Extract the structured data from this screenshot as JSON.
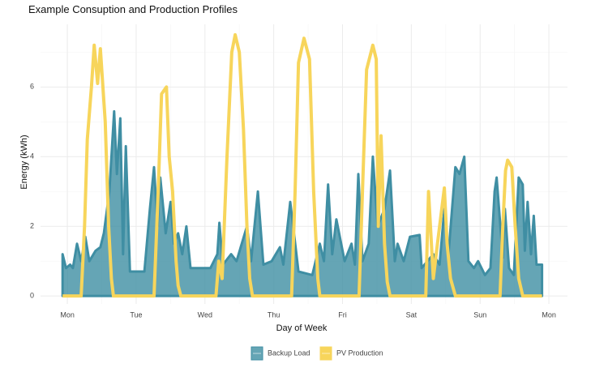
{
  "chart_data": {
    "type": "line",
    "title": "Example Consuption and Production Profiles",
    "x_label": "Day of Week",
    "y_label": "Energy (kWh)",
    "xlim": [
      -0.39,
      7.27
    ],
    "ylim": [
      -0.23,
      7.8
    ],
    "xticks": [
      {
        "value": 0,
        "label": "Mon"
      },
      {
        "value": 1,
        "label": "Tue"
      },
      {
        "value": 2,
        "label": "Wed"
      },
      {
        "value": 3,
        "label": "Thu"
      },
      {
        "value": 4,
        "label": "Fri"
      },
      {
        "value": 5,
        "label": "Sat"
      },
      {
        "value": 6,
        "label": "Sun"
      },
      {
        "value": 7,
        "label": "Mon"
      }
    ],
    "yticks": [
      0,
      2,
      4,
      6
    ],
    "grid": true,
    "legend": "bottom",
    "series": [
      {
        "name": "Backup Load",
        "color": "#3f8ea3",
        "fill": true,
        "x": [
          -0.07,
          -0.02,
          0.04,
          0.08,
          0.14,
          0.2,
          0.26,
          0.32,
          0.41,
          0.48,
          0.53,
          0.61,
          0.68,
          0.72,
          0.77,
          0.81,
          0.85,
          0.91,
          1.12,
          1.2,
          1.26,
          1.31,
          1.35,
          1.43,
          1.5,
          1.55,
          1.61,
          1.67,
          1.73,
          1.79,
          2.08,
          2.18,
          2.21,
          2.26,
          2.38,
          2.46,
          2.61,
          2.67,
          2.77,
          2.85,
          2.97,
          3.09,
          3.14,
          3.24,
          3.36,
          3.56,
          3.67,
          3.73,
          3.79,
          3.85,
          3.91,
          4.03,
          4.13,
          4.18,
          4.23,
          4.29,
          4.38,
          4.44,
          4.51,
          4.61,
          4.69,
          4.76,
          4.8,
          4.89,
          4.98,
          5.12,
          5.15,
          5.32,
          5.41,
          5.48,
          5.54,
          5.64,
          5.7,
          5.77,
          5.83,
          5.91,
          5.97,
          6.07,
          6.15,
          6.21,
          6.24,
          6.33,
          6.36,
          6.42,
          6.49,
          6.56,
          6.62,
          6.65,
          6.69,
          6.74,
          6.78,
          6.82,
          6.9
        ],
        "values": [
          1.2,
          0.8,
          0.9,
          0.8,
          1.5,
          1.0,
          1.7,
          1.0,
          1.3,
          1.4,
          1.8,
          3.0,
          5.3,
          3.5,
          5.1,
          1.2,
          4.3,
          0.7,
          0.7,
          2.5,
          3.7,
          2.0,
          3.4,
          1.8,
          2.7,
          1.5,
          1.8,
          1.2,
          2.0,
          0.8,
          0.8,
          1.2,
          2.1,
          0.9,
          1.2,
          1.0,
          2.0,
          1.0,
          3.0,
          0.9,
          1.0,
          1.4,
          0.9,
          2.7,
          0.7,
          0.6,
          1.5,
          1.0,
          3.2,
          1.2,
          2.2,
          1.0,
          1.5,
          0.9,
          3.5,
          1.0,
          1.5,
          4.0,
          2.0,
          2.5,
          3.6,
          1.0,
          1.5,
          1.0,
          1.7,
          1.75,
          0.8,
          1.2,
          0.9,
          2.5,
          1.2,
          3.7,
          3.5,
          4.0,
          1.0,
          0.8,
          1.0,
          0.6,
          0.8,
          3.0,
          3.4,
          1.1,
          2.5,
          0.8,
          0.6,
          3.4,
          3.2,
          1.3,
          2.7,
          1.2,
          2.3,
          0.9,
          0.9
        ]
      },
      {
        "name": "PV Production",
        "color": "#f7d55b",
        "fill": false,
        "x": [
          -0.07,
          0.2,
          0.25,
          0.29,
          0.35,
          0.39,
          0.44,
          0.48,
          0.55,
          0.6,
          0.64,
          0.67,
          1.26,
          1.32,
          1.37,
          1.44,
          1.48,
          1.53,
          1.58,
          1.61,
          1.65,
          2.16,
          2.2,
          2.25,
          2.32,
          2.39,
          2.44,
          2.5,
          2.56,
          2.61,
          2.65,
          2.69,
          3.26,
          3.31,
          3.36,
          3.44,
          3.52,
          3.58,
          3.64,
          3.67,
          4.24,
          4.29,
          4.35,
          4.44,
          4.49,
          4.52,
          4.56,
          4.61,
          4.65,
          4.69,
          5.21,
          5.25,
          5.32,
          5.38,
          5.48,
          5.52,
          5.57,
          5.64,
          6.29,
          6.33,
          6.37,
          6.4,
          6.46,
          6.51,
          6.56,
          6.62,
          6.9
        ],
        "values": [
          0,
          0,
          2.0,
          4.5,
          6.0,
          7.2,
          6.1,
          7.1,
          5.0,
          2.0,
          0.5,
          0,
          0,
          3.0,
          5.8,
          6.0,
          4.0,
          3.0,
          1.0,
          0.3,
          0,
          0,
          1.0,
          0.5,
          4.0,
          7.0,
          7.5,
          7.0,
          4.8,
          2.0,
          0.5,
          0,
          0,
          3.0,
          6.7,
          7.4,
          6.8,
          3.0,
          0.5,
          0,
          0,
          3.0,
          6.5,
          7.2,
          6.8,
          2.0,
          4.6,
          1.5,
          0.4,
          0,
          0,
          3.0,
          0.5,
          1.5,
          3.1,
          1.5,
          0.5,
          0,
          0,
          2.0,
          3.6,
          3.9,
          3.7,
          2.0,
          0.5,
          0,
          0
        ]
      }
    ]
  }
}
